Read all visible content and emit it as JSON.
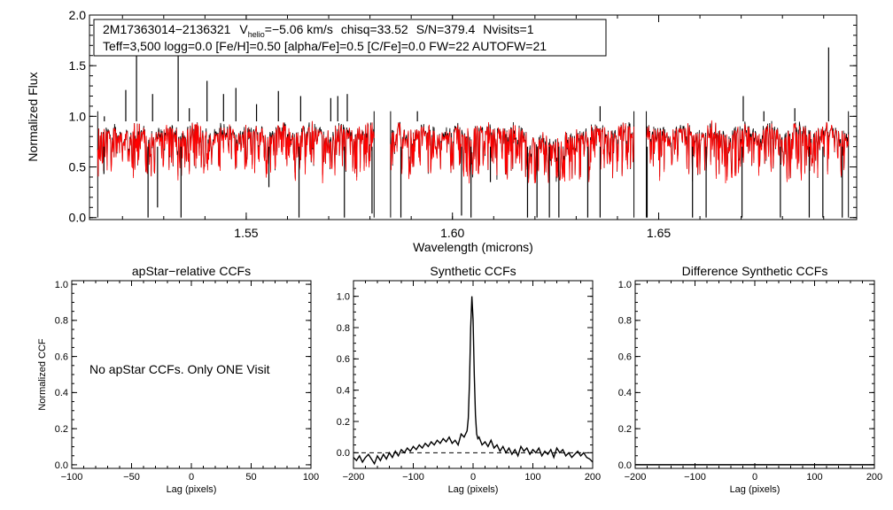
{
  "chart_data": [
    {
      "type": "line",
      "id": "spectrum",
      "xlabel": "Wavelength (microns)",
      "ylabel": "Normalized Flux",
      "xlim": [
        1.512,
        1.698
      ],
      "ylim": [
        -0.02,
        2.0
      ],
      "xticks": [
        1.55,
        1.6,
        1.65
      ],
      "xtick_labels": [
        "1.55",
        "1.60",
        "1.65"
      ],
      "yticks": [
        0.0,
        0.5,
        1.0,
        1.5,
        2.0
      ],
      "ytick_labels": [
        "0.0",
        "0.5",
        "1.0",
        "1.5",
        "2.0"
      ],
      "chips": [
        [
          1.514,
          1.581
        ],
        [
          1.585,
          1.644
        ],
        [
          1.647,
          1.696
        ]
      ],
      "series": [
        {
          "name": "observed",
          "color": "#000000"
        },
        {
          "name": "model",
          "color": "#ff0000"
        }
      ],
      "emission_spikes": [
        [
          1.5156,
          1.0
        ],
        [
          1.5208,
          1.26
        ],
        [
          1.5234,
          1.78
        ],
        [
          1.5273,
          1.22
        ],
        [
          1.5335,
          1.7
        ],
        [
          1.5362,
          1.08
        ],
        [
          1.5405,
          1.35
        ],
        [
          1.5445,
          1.22
        ],
        [
          1.5475,
          1.28
        ],
        [
          1.5525,
          1.12
        ],
        [
          1.5578,
          1.25
        ],
        [
          1.5632,
          1.2
        ],
        [
          1.5705,
          1.18
        ],
        [
          1.5722,
          1.2
        ],
        [
          1.5745,
          1.22
        ],
        [
          1.5915,
          1.05
        ],
        [
          1.6358,
          1.1
        ],
        [
          1.6705,
          1.2
        ],
        [
          1.6755,
          1.05
        ],
        [
          1.683,
          1.08
        ],
        [
          1.6912,
          1.68
        ]
      ],
      "absorption_lines": [
        [
          1.5155,
          0.43
        ],
        [
          1.5262,
          0.0
        ],
        [
          1.5285,
          0.1
        ],
        [
          1.5342,
          0.0
        ],
        [
          1.5555,
          0.3
        ],
        [
          1.5628,
          0.0
        ],
        [
          1.5738,
          0.0
        ],
        [
          1.5805,
          0.04
        ],
        [
          1.5875,
          0.0
        ],
        [
          1.6022,
          0.02
        ],
        [
          1.6045,
          0.0
        ],
        [
          1.6092,
          0.35
        ],
        [
          1.6182,
          0.0
        ],
        [
          1.6205,
          0.0
        ],
        [
          1.6235,
          0.0
        ],
        [
          1.6258,
          0.0
        ],
        [
          1.6328,
          0.0
        ],
        [
          1.6358,
          0.0
        ],
        [
          1.6472,
          0.0
        ],
        [
          1.6582,
          0.0
        ],
        [
          1.6615,
          0.0
        ],
        [
          1.6702,
          0.0
        ],
        [
          1.6795,
          0.0
        ],
        [
          1.6865,
          0.0
        ],
        [
          1.6898,
          0.0
        ],
        [
          1.6945,
          0.0
        ]
      ],
      "annotation": {
        "object": "2M17363014−2136321",
        "vhelio_label": "V",
        "vhelio_sub": "helio",
        "vhelio_value": "=−5.06 km/s",
        "chisq": "chisq=33.52",
        "sn": "S/N=379.4",
        "nvisits": "Nvisits=1",
        "params": "Teff=3,500 logg=0.0 [Fe/H]=0.50 [alpha/Fe]=0.5 [C/Fe]=0.0 FW=22 AUTOFW=21"
      }
    },
    {
      "type": "line",
      "id": "apstar-ccf",
      "title": "apStar−relative CCFs",
      "xlabel": "Lag (pixels)",
      "ylabel": "Normalized CCF",
      "xlim": [
        -100,
        100
      ],
      "ylim": [
        -0.02,
        1.02
      ],
      "xticks": [
        -100,
        -50,
        0,
        50,
        100
      ],
      "xtick_labels": [
        "−100",
        "−50",
        "0",
        "50",
        "100"
      ],
      "yticks": [
        0.0,
        0.2,
        0.4,
        0.6,
        0.8,
        1.0
      ],
      "ytick_labels": [
        "0.0",
        "0.2",
        "0.4",
        "0.6",
        "0.8",
        "1.0"
      ],
      "message": "No apStar CCFs.  Only ONE Visit"
    },
    {
      "type": "line",
      "id": "synthetic-ccf",
      "title": "Synthetic CCFs",
      "xlabel": "Lag (pixels)",
      "xlim": [
        -200,
        200
      ],
      "ylim": [
        -0.1,
        1.1
      ],
      "xticks": [
        -200,
        -100,
        0,
        100,
        200
      ],
      "xtick_labels": [
        "−200",
        "−100",
        "0",
        "100",
        "200"
      ],
      "yticks": [
        0.0,
        0.2,
        0.4,
        0.6,
        0.8,
        1.0
      ],
      "ytick_labels": [
        "0.0",
        "0.2",
        "0.4",
        "0.6",
        "0.8",
        "1.0"
      ],
      "x": [
        -200,
        -195,
        -190,
        -185,
        -180,
        -175,
        -170,
        -165,
        -160,
        -155,
        -150,
        -145,
        -140,
        -135,
        -130,
        -125,
        -120,
        -115,
        -110,
        -105,
        -100,
        -95,
        -90,
        -85,
        -80,
        -75,
        -70,
        -65,
        -60,
        -55,
        -50,
        -45,
        -40,
        -35,
        -30,
        -25,
        -20,
        -15,
        -10,
        -8,
        -6,
        -4,
        -2,
        0,
        2,
        4,
        6,
        8,
        10,
        15,
        20,
        25,
        30,
        35,
        40,
        45,
        50,
        55,
        60,
        65,
        70,
        75,
        80,
        85,
        90,
        95,
        100,
        105,
        110,
        115,
        120,
        125,
        130,
        135,
        140,
        145,
        150,
        155,
        160,
        165,
        170,
        175,
        180,
        185,
        190,
        195,
        200
      ],
      "values": [
        -0.03,
        -0.05,
        -0.02,
        -0.06,
        -0.03,
        -0.01,
        -0.04,
        -0.07,
        -0.02,
        -0.05,
        -0.01,
        -0.04,
        0.0,
        -0.03,
        0.01,
        -0.02,
        0.02,
        0.0,
        0.03,
        0.01,
        0.04,
        0.02,
        0.05,
        0.03,
        0.06,
        0.04,
        0.07,
        0.05,
        0.08,
        0.06,
        0.09,
        0.07,
        0.1,
        0.06,
        0.08,
        0.05,
        0.12,
        0.1,
        0.14,
        0.22,
        0.45,
        0.8,
        1.0,
        0.85,
        0.5,
        0.24,
        0.12,
        0.09,
        0.1,
        0.05,
        0.07,
        0.04,
        0.08,
        0.03,
        0.05,
        0.01,
        0.04,
        0.0,
        0.03,
        -0.01,
        0.02,
        -0.02,
        0.04,
        0.01,
        0.03,
        -0.01,
        0.02,
        0.0,
        0.03,
        -0.02,
        0.01,
        -0.01,
        0.02,
        -0.03,
        0.03,
        0.0,
        0.02,
        -0.02,
        0.0,
        -0.03,
        -0.01,
        0.01,
        -0.02,
        0.0,
        -0.03,
        -0.04,
        -0.06
      ],
      "zero_line": 0.0
    },
    {
      "type": "line",
      "id": "difference-ccf",
      "title": "Difference Synthetic CCFs",
      "xlabel": "Lag (pixels)",
      "xlim": [
        -200,
        200
      ],
      "ylim": [
        -0.02,
        1.02
      ],
      "xticks": [
        -200,
        -100,
        0,
        100,
        200
      ],
      "xtick_labels": [
        "−200",
        "−100",
        "0",
        "100",
        "200"
      ],
      "yticks": [
        0.0,
        0.2,
        0.4,
        0.6,
        0.8,
        1.0
      ],
      "ytick_labels": [
        "0.0",
        "0.2",
        "0.4",
        "0.6",
        "0.8",
        "1.0"
      ],
      "zero_line": 0.0
    }
  ]
}
